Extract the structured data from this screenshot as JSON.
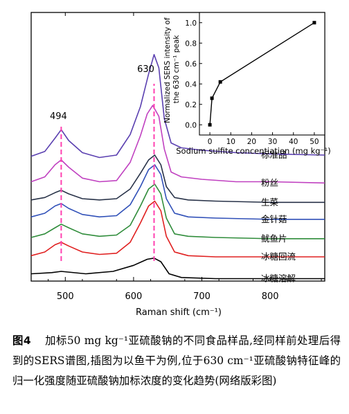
{
  "chart_data": [
    {
      "type": "line",
      "title": "",
      "xlabel": "Raman shift (cm⁻¹)",
      "ylabel": "",
      "xlim": [
        450,
        880
      ],
      "x_ticks": [
        "500",
        "600",
        "700",
        "800"
      ],
      "peak_labels": [
        {
          "x": 494,
          "label": "494"
        },
        {
          "x": 630,
          "label": "630"
        }
      ],
      "series": [
        {
          "name": "标准品",
          "color": "#5a3fb0",
          "points": [
            [
              450,
              0.87
            ],
            [
              470,
              0.91
            ],
            [
              485,
              1.02
            ],
            [
              494,
              1.09
            ],
            [
              505,
              1.0
            ],
            [
              525,
              0.9
            ],
            [
              550,
              0.86
            ],
            [
              575,
              0.88
            ],
            [
              595,
              1.05
            ],
            [
              610,
              1.28
            ],
            [
              622,
              1.55
            ],
            [
              630,
              1.71
            ],
            [
              637,
              1.6
            ],
            [
              645,
              1.18
            ],
            [
              655,
              0.98
            ],
            [
              670,
              0.94
            ],
            [
              700,
              0.92
            ],
            [
              750,
              0.9
            ],
            [
              800,
              0.89
            ],
            [
              880,
              0.88
            ]
          ]
        },
        {
          "name": "粉丝",
          "color": "#c040c0",
          "points": [
            [
              450,
              0.66
            ],
            [
              470,
              0.7
            ],
            [
              485,
              0.8
            ],
            [
              494,
              0.84
            ],
            [
              505,
              0.78
            ],
            [
              525,
              0.69
            ],
            [
              550,
              0.66
            ],
            [
              575,
              0.67
            ],
            [
              595,
              0.82
            ],
            [
              610,
              1.04
            ],
            [
              620,
              1.22
            ],
            [
              628,
              1.29
            ],
            [
              637,
              1.2
            ],
            [
              645,
              0.93
            ],
            [
              655,
              0.74
            ],
            [
              670,
              0.7
            ],
            [
              700,
              0.68
            ],
            [
              750,
              0.66
            ],
            [
              800,
              0.66
            ],
            [
              880,
              0.65
            ]
          ]
        },
        {
          "name": "生菜",
          "color": "#283248",
          "points": [
            [
              450,
              0.51
            ],
            [
              470,
              0.53
            ],
            [
              485,
              0.57
            ],
            [
              494,
              0.59
            ],
            [
              505,
              0.56
            ],
            [
              525,
              0.52
            ],
            [
              550,
              0.51
            ],
            [
              575,
              0.52
            ],
            [
              595,
              0.6
            ],
            [
              610,
              0.73
            ],
            [
              622,
              0.84
            ],
            [
              631,
              0.88
            ],
            [
              640,
              0.8
            ],
            [
              648,
              0.62
            ],
            [
              660,
              0.53
            ],
            [
              680,
              0.51
            ],
            [
              720,
              0.5
            ],
            [
              800,
              0.49
            ],
            [
              880,
              0.49
            ]
          ]
        },
        {
          "name": "金针菇",
          "color": "#3050b8",
          "points": [
            [
              450,
              0.37
            ],
            [
              470,
              0.4
            ],
            [
              485,
              0.46
            ],
            [
              494,
              0.48
            ],
            [
              505,
              0.44
            ],
            [
              525,
              0.39
            ],
            [
              550,
              0.37
            ],
            [
              575,
              0.38
            ],
            [
              595,
              0.47
            ],
            [
              610,
              0.62
            ],
            [
              622,
              0.76
            ],
            [
              631,
              0.8
            ],
            [
              640,
              0.72
            ],
            [
              648,
              0.52
            ],
            [
              660,
              0.4
            ],
            [
              680,
              0.37
            ],
            [
              720,
              0.36
            ],
            [
              800,
              0.35
            ],
            [
              880,
              0.35
            ]
          ]
        },
        {
          "name": "鱿鱼片",
          "color": "#2f8c3a",
          "points": [
            [
              450,
              0.2
            ],
            [
              470,
              0.23
            ],
            [
              485,
              0.28
            ],
            [
              494,
              0.31
            ],
            [
              505,
              0.28
            ],
            [
              525,
              0.23
            ],
            [
              550,
              0.21
            ],
            [
              575,
              0.22
            ],
            [
              595,
              0.3
            ],
            [
              610,
              0.46
            ],
            [
              622,
              0.6
            ],
            [
              631,
              0.64
            ],
            [
              640,
              0.56
            ],
            [
              648,
              0.36
            ],
            [
              660,
              0.23
            ],
            [
              680,
              0.21
            ],
            [
              720,
              0.2
            ],
            [
              800,
              0.19
            ],
            [
              880,
              0.19
            ]
          ]
        },
        {
          "name": "冰糖回流",
          "color": "#e02020",
          "points": [
            [
              450,
              0.05
            ],
            [
              470,
              0.08
            ],
            [
              485,
              0.14
            ],
            [
              494,
              0.16
            ],
            [
              505,
              0.13
            ],
            [
              525,
              0.08
            ],
            [
              550,
              0.06
            ],
            [
              575,
              0.07
            ],
            [
              595,
              0.16
            ],
            [
              610,
              0.32
            ],
            [
              622,
              0.46
            ],
            [
              631,
              0.5
            ],
            [
              640,
              0.42
            ],
            [
              648,
              0.21
            ],
            [
              660,
              0.08
            ],
            [
              680,
              0.05
            ],
            [
              720,
              0.04
            ],
            [
              800,
              0.04
            ],
            [
              880,
              0.04
            ]
          ]
        },
        {
          "name": "冰糖溶解",
          "color": "#000000",
          "points": [
            [
              450,
              -0.1
            ],
            [
              480,
              -0.09
            ],
            [
              494,
              -0.08
            ],
            [
              530,
              -0.1
            ],
            [
              570,
              -0.08
            ],
            [
              600,
              -0.03
            ],
            [
              620,
              0.02
            ],
            [
              630,
              0.03
            ],
            [
              640,
              0.0
            ],
            [
              652,
              -0.1
            ],
            [
              670,
              -0.13
            ],
            [
              720,
              -0.14
            ],
            [
              800,
              -0.14
            ],
            [
              880,
              -0.14
            ]
          ]
        }
      ]
    },
    {
      "type": "line",
      "title": "",
      "xlabel": "Sodium sulfite concentiation (mg kg⁻¹)",
      "ylabel": "Normalized SERS intensity of the 630 cm⁻¹ peak",
      "xlim": [
        -5,
        55
      ],
      "ylim": [
        -0.1,
        1.1
      ],
      "x_ticks": [
        "0",
        "10",
        "20",
        "30",
        "40",
        "50"
      ],
      "y_ticks": [
        "0.0",
        "0.2",
        "0.4",
        "0.6",
        "0.8",
        "1.0"
      ],
      "series": [
        {
          "name": "",
          "x": [
            0,
            1,
            5,
            50
          ],
          "y": [
            0.0,
            0.26,
            0.42,
            1.0
          ]
        }
      ]
    }
  ],
  "caption": {
    "label": "图4",
    "text": "加标50 mg kg⁻¹亚硫酸钠的不同食品样品,经同样前处理后得到的SERS谱图,插图为以鱼干为例,位于630 cm⁻¹亚硫酸钠特征峰的归一化强度随亚硫酸钠加标浓度的变化趋势(网络版彩图)"
  }
}
